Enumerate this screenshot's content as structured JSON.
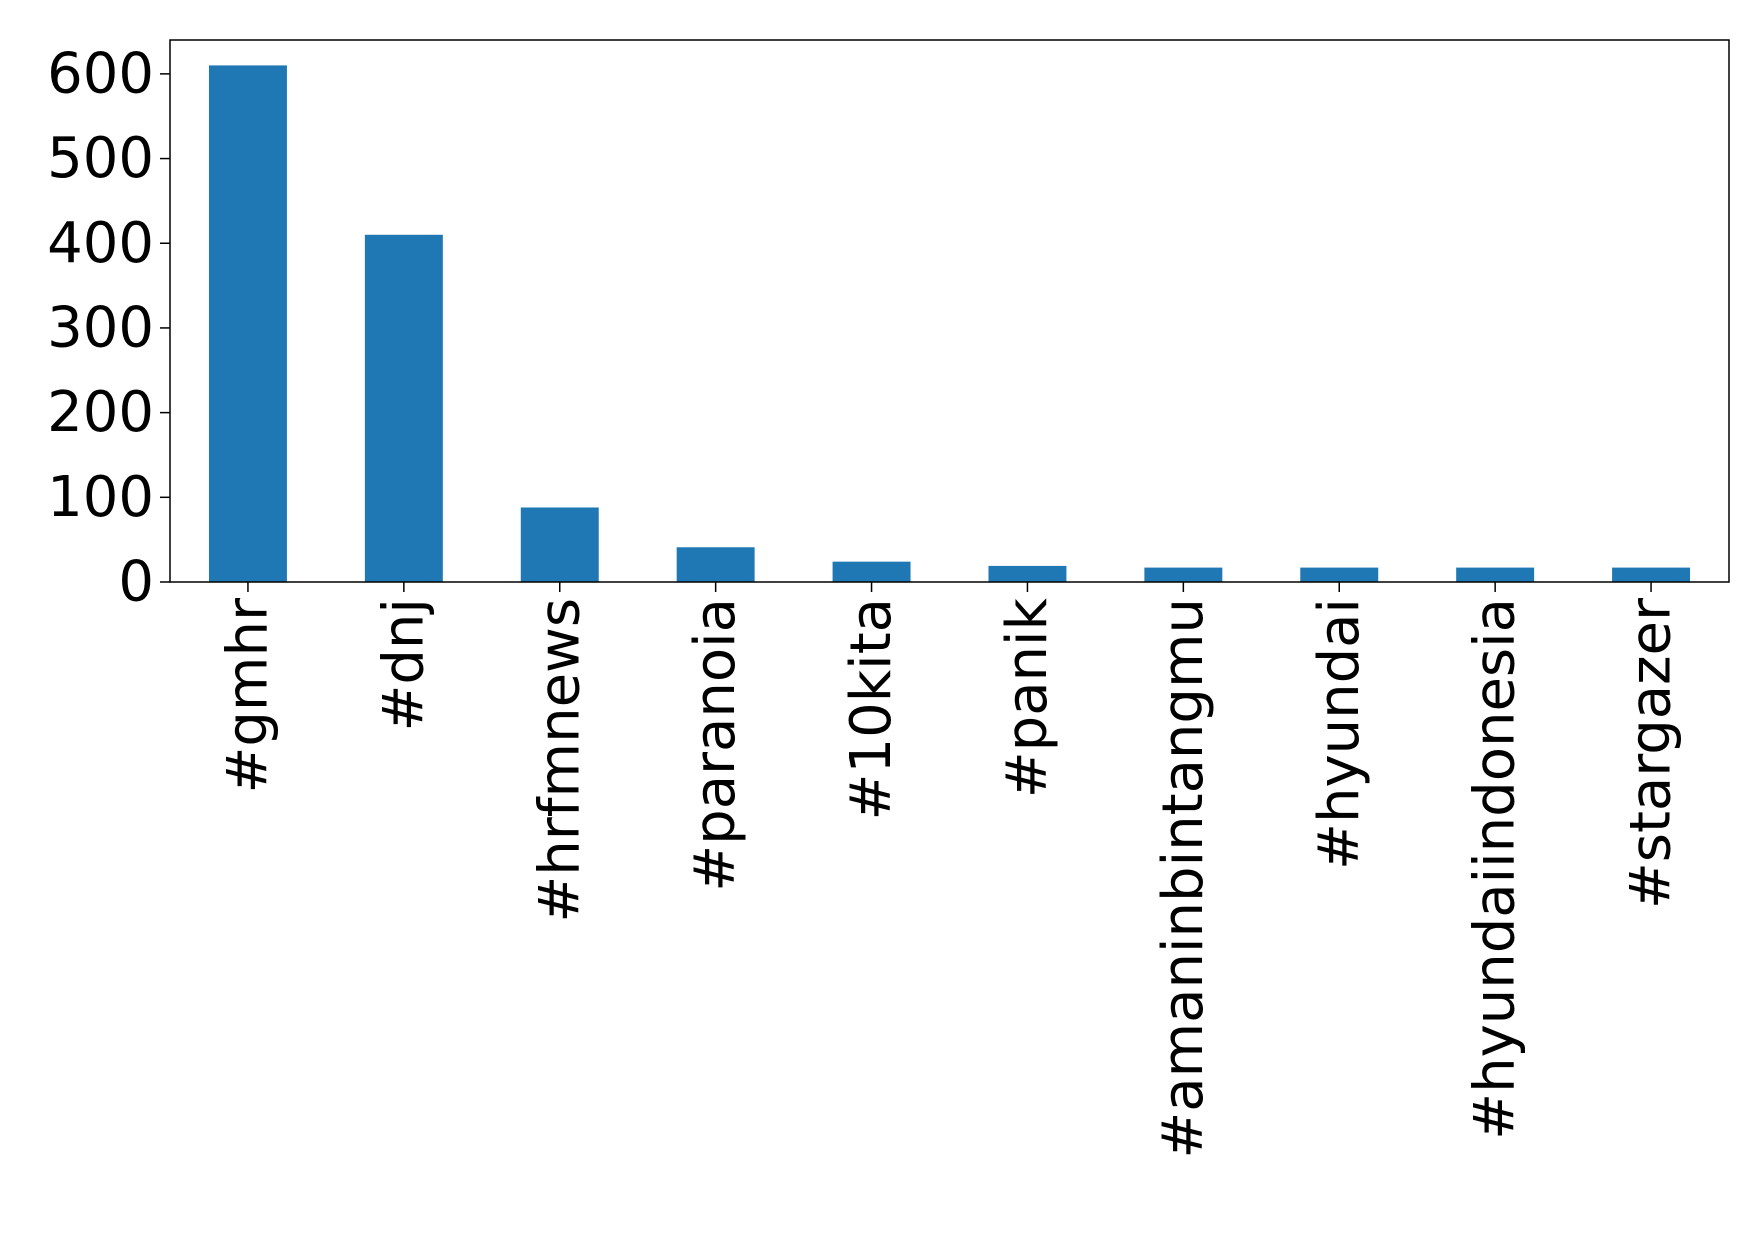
{
  "chart_data": {
    "type": "bar",
    "title": "",
    "xlabel": "",
    "ylabel": "",
    "categories": [
      "#gmhr",
      "#dnj",
      "#hrfmnews",
      "#paranoia",
      "#10kita",
      "#panik",
      "#amaninbintangmu",
      "#hyundai",
      "#hyundaiindonesia",
      "#stargazer"
    ],
    "values": [
      610,
      410,
      88,
      41,
      24,
      19,
      17,
      17,
      17,
      17
    ],
    "yticks": [
      0,
      100,
      200,
      300,
      400,
      500,
      600
    ],
    "ylim": [
      0,
      640
    ],
    "grid": false,
    "legend": "none",
    "bar_color": "#1f77b4"
  }
}
